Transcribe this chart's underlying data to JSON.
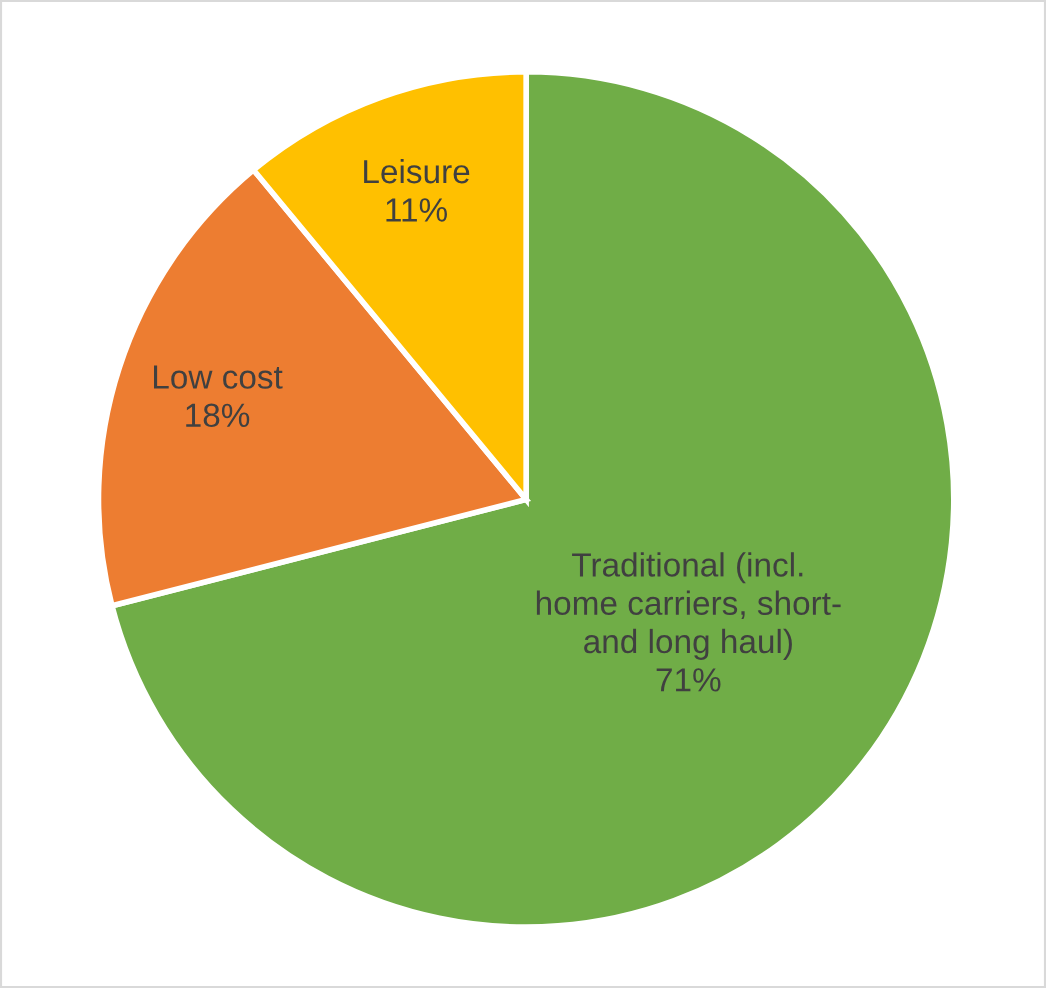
{
  "chart_data": {
    "type": "pie",
    "categories": [
      "Traditional (incl.\nhome carriers, short-\nand long haul)",
      "Low cost",
      "Leisure"
    ],
    "values": [
      71,
      18,
      11
    ],
    "colors": [
      "#70ad47",
      "#ed7d31",
      "#ffc000"
    ],
    "value_labels": [
      "71%",
      "18%",
      "11%"
    ],
    "legend": false
  }
}
